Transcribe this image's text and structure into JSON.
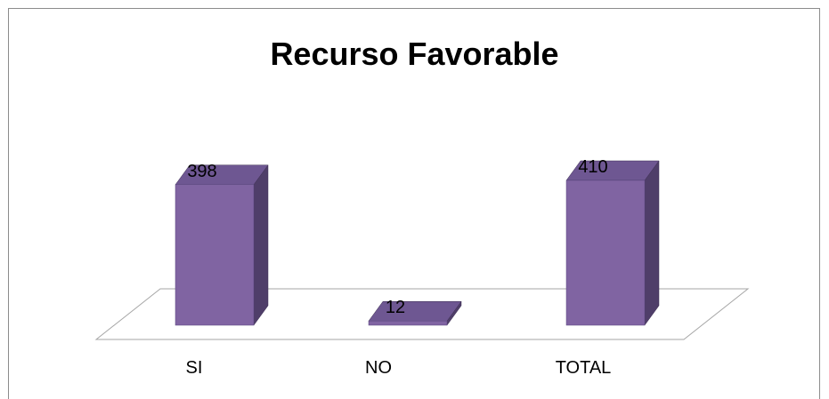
{
  "chart_data": {
    "type": "bar",
    "title": "Recurso Favorable",
    "categories": [
      "SI",
      "NO",
      "TOTAL"
    ],
    "values": [
      398,
      12,
      410
    ],
    "data_labels": [
      "398",
      "12",
      "410"
    ],
    "bar_style": "3d",
    "grid": false,
    "legend": "none",
    "xlabel": "",
    "ylabel": "",
    "colors": {
      "front": "#8064a2",
      "side": "#4f3e69",
      "top": "#6e5792",
      "floor_stroke": "#a6a6a6"
    }
  }
}
